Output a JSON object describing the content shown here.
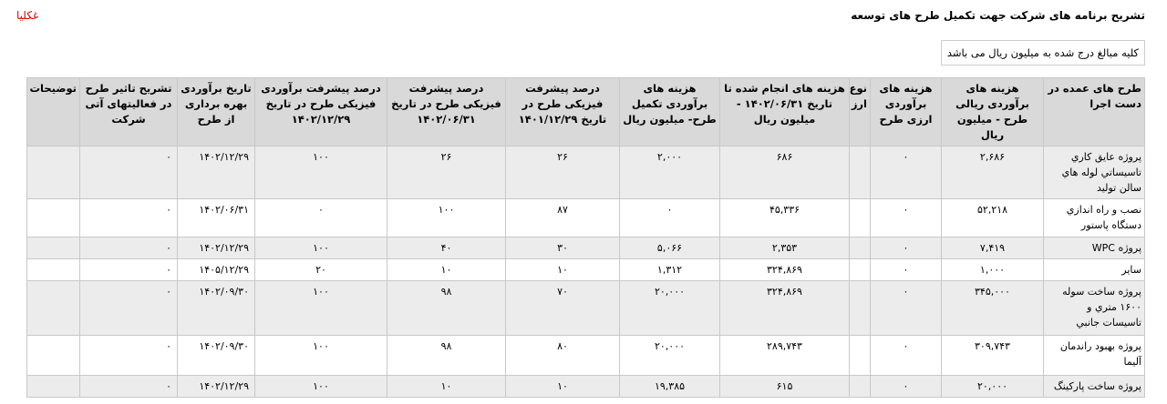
{
  "page": {
    "title": "تشریح برنامه های شرکت جهت تکمیل طرح های توسعه",
    "link": "غکلیا",
    "note": "کلیه مبالغ درج شده به میلیون ریال می باشد"
  },
  "table": {
    "headers": [
      "طرح های عمده در دست اجرا",
      "هزینه های برآوردی ریالی طرح - میلیون ریال",
      "هزینه های برآوردی ارزی طرح",
      "نوع ارز",
      "هزینه های انجام شده تا تاریخ ۱۴۰۲/۰۶/۳۱ - میلیون ریال",
      "هزینه های برآوردی تکمیل طرح- میلیون ریال",
      "درصد پیشرفت فیزیکی طرح در تاریخ ۱۴۰۱/۱۲/۲۹",
      "درصد پیشرفت فیزیکی طرح در تاریخ ۱۴۰۲/۰۶/۳۱",
      "درصد پیشرفت برآوردی فیزیکی طرح در تاریخ ۱۴۰۲/۱۲/۲۹",
      "تاریخ برآوردی بهره برداری از طرح",
      "تشریح تاثیر طرح در فعالیتهای آتی شرکت",
      "توضیحات"
    ],
    "rows": [
      [
        "پروژه عایق کاري تاسیساتي لوله هاي سالن تولید",
        "۲,۶۸۶",
        "۰",
        "",
        "۶۸۶",
        "۲,۰۰۰",
        "۲۶",
        "۲۶",
        "۱۰۰",
        "۱۴۰۲/۱۲/۲۹",
        "۰",
        ""
      ],
      [
        "نصب و راه اندازي دستگاه پاستور",
        "۵۲,۲۱۸",
        "۰",
        "",
        "۴۵,۳۳۶",
        "۰",
        "۸۷",
        "۱۰۰",
        "۰",
        "۱۴۰۲/۰۶/۳۱",
        "۰",
        ""
      ],
      [
        "پروژه WPC",
        "۷,۴۱۹",
        "۰",
        "",
        "۲,۳۵۳",
        "۵,۰۶۶",
        "۳۰",
        "۴۰",
        "۱۰۰",
        "۱۴۰۲/۱۲/۲۹",
        "۰",
        ""
      ],
      [
        "سایر",
        "۱,۰۰۰",
        "۰",
        "",
        "۳۲۴,۸۶۹",
        "۱,۳۱۲",
        "۱۰",
        "۱۰",
        "۲۰",
        "۱۴۰۵/۱۲/۲۹",
        "۰",
        ""
      ],
      [
        "پروژه ساخت سوله ۱۶۰۰ متري و تاسیسات جانبي",
        "۳۴۵,۰۰۰",
        "۰",
        "",
        "۳۲۴,۸۶۹",
        "۲۰,۰۰۰",
        "۷۰",
        "۹۸",
        "۱۰۰",
        "۱۴۰۲/۰۹/۳۰",
        "۰",
        ""
      ],
      [
        "پروژه بهبود راندمان آلیما",
        "۳۰۹,۷۴۳",
        "۰",
        "",
        "۲۸۹,۷۴۳",
        "۲۰,۰۰۰",
        "۸۰",
        "۹۸",
        "۱۰۰",
        "۱۴۰۲/۰۹/۳۰",
        "۰",
        ""
      ],
      [
        "پروژه ساخت پارکینگ",
        "۲۰,۰۰۰",
        "۰",
        "",
        "۶۱۵",
        "۱۹,۳۸۵",
        "۱۰",
        "۱۰",
        "۱۰۰",
        "۱۴۰۲/۱۲/۲۹",
        "۰",
        ""
      ]
    ]
  },
  "colors": {
    "header_bg": "#d9d9d9",
    "alt_row_bg": "#ececec",
    "link": "#dd0000"
  }
}
